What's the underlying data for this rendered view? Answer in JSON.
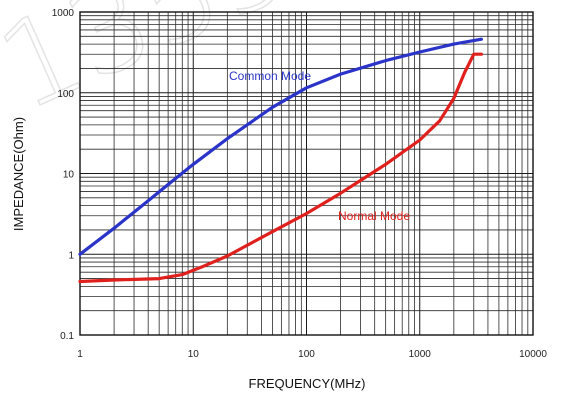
{
  "chart_data": {
    "type": "line",
    "xlabel": "FREQUENCY(MHz)",
    "ylabel": "IMPEDANCE(Ohm)",
    "x_scale": "log",
    "y_scale": "log",
    "xlim": [
      1,
      10000
    ],
    "ylim": [
      0.1,
      1000
    ],
    "grid": true,
    "x_tick_labels": [
      "1",
      "10",
      "100",
      "1000",
      "10000"
    ],
    "y_tick_labels": [
      "0.1",
      "1",
      "10",
      "100",
      "1000"
    ],
    "series": [
      {
        "name": "Common Mode",
        "color": "#2b34c8",
        "x": [
          1,
          2,
          4,
          6,
          10,
          20,
          50,
          100,
          200,
          500,
          1000,
          2000,
          3500
        ],
        "y": [
          1.0,
          2.1,
          4.6,
          7.3,
          13,
          27,
          66,
          115,
          170,
          250,
          320,
          400,
          460
        ]
      },
      {
        "name": "Normal Mode",
        "color": "#e0201c",
        "x": [
          1,
          2,
          5,
          8,
          12,
          20,
          50,
          100,
          200,
          500,
          1000,
          1500,
          2000,
          2500,
          3000,
          3500
        ],
        "y": [
          0.46,
          0.48,
          0.5,
          0.56,
          0.7,
          0.95,
          1.9,
          3.2,
          5.7,
          13,
          26,
          45,
          85,
          180,
          300,
          300
        ]
      }
    ],
    "watermark_text": "1355"
  }
}
